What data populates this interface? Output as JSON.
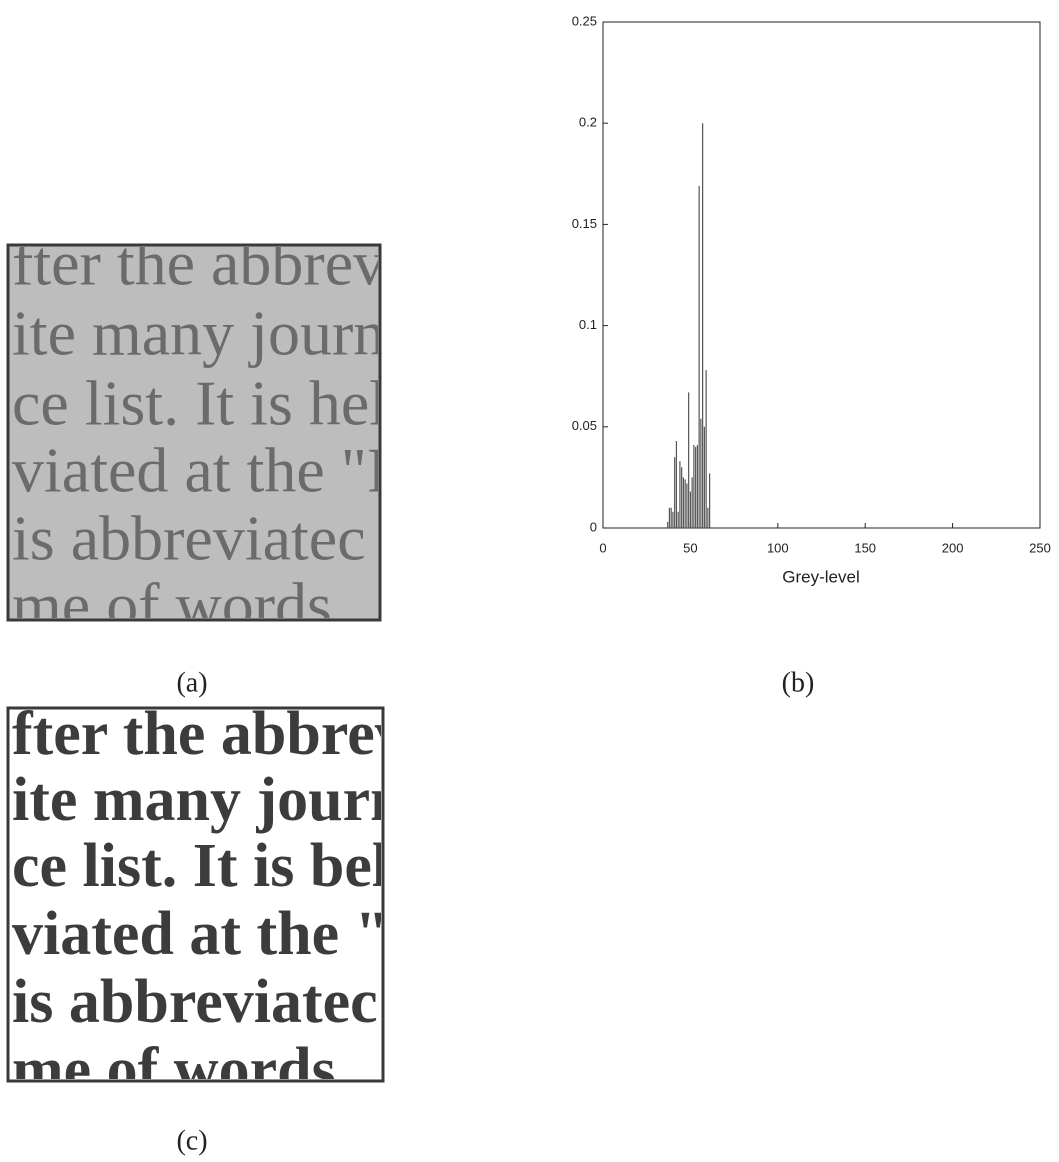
{
  "chart_data": {
    "type": "bar",
    "x_label": "Grey-level",
    "x": [
      37,
      38,
      39,
      40,
      41,
      42,
      43,
      44,
      45,
      46,
      47,
      48,
      49,
      50,
      51,
      52,
      53,
      54,
      55,
      56,
      57,
      58,
      59,
      60,
      61
    ],
    "values": [
      0.003,
      0.01,
      0.01,
      0.008,
      0.035,
      0.043,
      0.008,
      0.033,
      0.03,
      0.025,
      0.024,
      0.022,
      0.067,
      0.018,
      0.025,
      0.041,
      0.04,
      0.041,
      0.169,
      0.054,
      0.2,
      0.05,
      0.078,
      0.01,
      0.027
    ],
    "color": "#555555",
    "xlim": [
      0,
      250
    ],
    "xticks": [
      0,
      50,
      100,
      150,
      200,
      250
    ],
    "ylim": [
      0,
      0.25
    ],
    "yticks": [
      0,
      0.05,
      0.1,
      0.15,
      0.2,
      0.25
    ],
    "grid": false
  },
  "panel_labels": [
    "(a)",
    "(b)",
    "(c)"
  ],
  "image_a": {
    "lines": [
      "fter the abbrev",
      "ite many journ",
      "ce list. It is hel",
      "viated at the \"I",
      "is abbreviatec",
      "me of words"
    ]
  },
  "image_c": {
    "lines": [
      "fter the abbrev",
      "ite many journ",
      "ce list. It is bel",
      "viated at the \"I",
      "is abbreviatec",
      "me of words"
    ]
  }
}
